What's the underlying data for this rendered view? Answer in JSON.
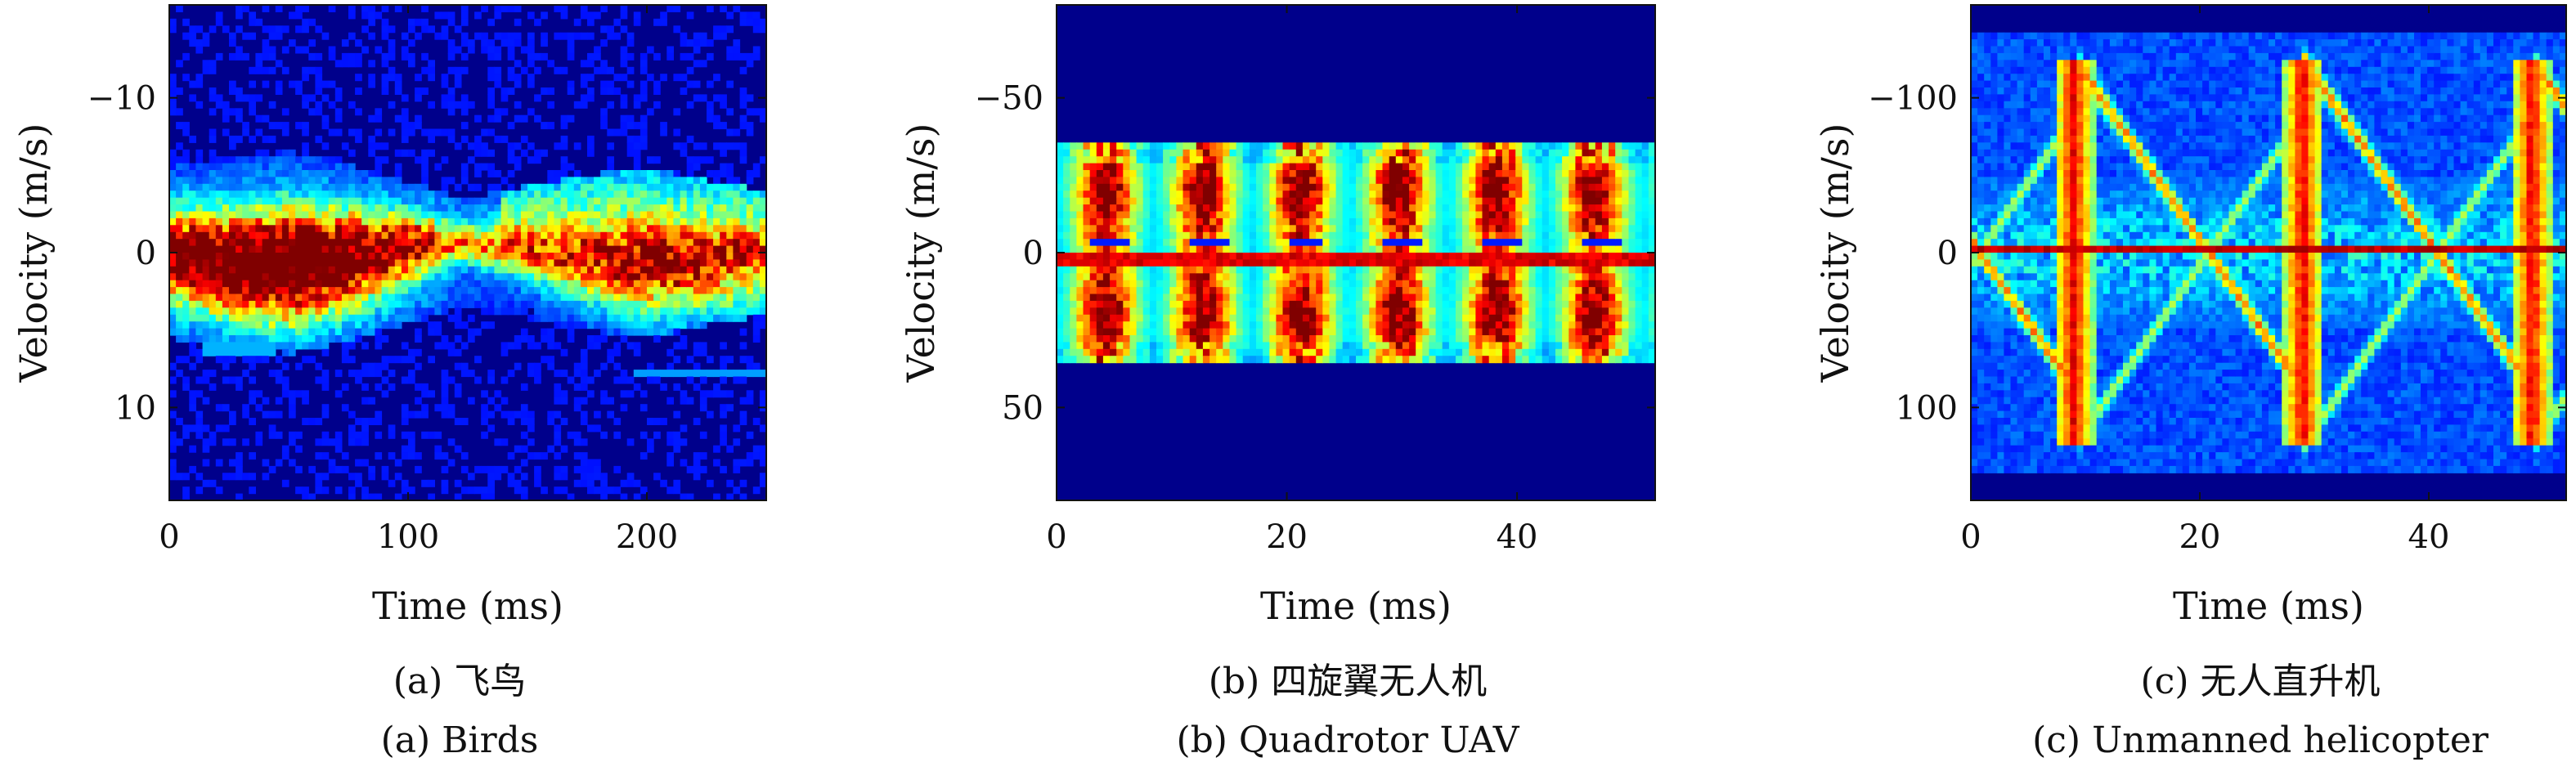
{
  "chart_data": [
    {
      "type": "heatmap",
      "id": "birds",
      "caption_cn": "(a) 飞鸟",
      "caption_en": "(a) Birds",
      "xlabel": "Time (ms)",
      "ylabel": "Velocity (m/s)",
      "xlim": [
        0,
        250
      ],
      "ylim": [
        -16,
        16
      ],
      "y_inverted": true,
      "xticks": [
        0,
        100,
        200
      ],
      "yticks": [
        -10,
        0,
        10
      ],
      "ytick_labels": [
        "−10",
        "0",
        "10"
      ],
      "background_color": "#00008b",
      "signal": {
        "kind": "birds",
        "center_velocity": 0,
        "envelope_t": [
          0,
          25,
          50,
          75,
          100,
          125,
          150,
          175,
          200,
          225,
          250
        ],
        "envelope_halfwidth": [
          4,
          4.5,
          5,
          4.2,
          3,
          2,
          2.8,
          3.5,
          4,
          3.2,
          2.5
        ]
      }
    },
    {
      "type": "heatmap",
      "id": "quadrotor-uav",
      "caption_cn": "(b) 四旋翼无人机",
      "caption_en": "(b) Quadrotor UAV",
      "xlabel": "Time (ms)",
      "ylabel": "Velocity (m/s)",
      "xlim": [
        0,
        52
      ],
      "ylim": [
        -80,
        80
      ],
      "y_inverted": true,
      "xticks": [
        0,
        20,
        40
      ],
      "yticks": [
        -50,
        0,
        50
      ],
      "ytick_labels": [
        "−50",
        "0",
        "50"
      ],
      "background_color": "#00008b",
      "signal": {
        "kind": "quadrotor",
        "center_velocity": 0,
        "band_halfwidth": 35,
        "blob_period_ms": 8.5
      }
    },
    {
      "type": "heatmap",
      "id": "unmanned-helicopter",
      "caption_cn": "(c) 无人直升机",
      "caption_en": "(c) Unmanned helicopter",
      "xlabel": "Time (ms)",
      "ylabel": "Velocity (m/s)",
      "xlim": [
        0,
        52
      ],
      "ylim": [
        -160,
        160
      ],
      "y_inverted": true,
      "xticks": [
        0,
        20,
        40
      ],
      "yticks": [
        -100,
        0,
        100
      ],
      "ytick_labels": [
        "−100",
        "0",
        "100"
      ],
      "background_color": "#00008b",
      "signal": {
        "kind": "helicopter",
        "center_velocity": 0,
        "flash_times_ms": [
          9,
          29,
          49
        ],
        "flash_extent": 125,
        "blade_period_ms": 20
      }
    }
  ]
}
